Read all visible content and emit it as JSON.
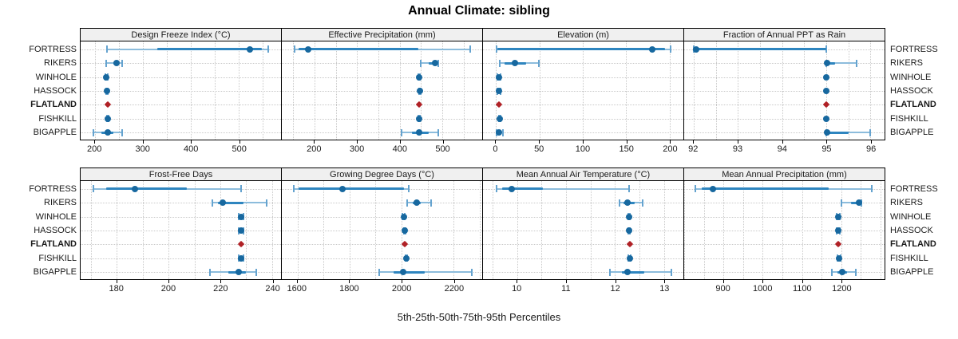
{
  "chart_data": {
    "type": "trellis-percentile-dotplot",
    "title": "Annual Climate: sibling",
    "xlabel": "5th-25th-50th-75th-95th Percentiles",
    "sites": [
      "FORTRESS",
      "RIKERS",
      "WINHOLE",
      "HASSOCK",
      "FLATLAND",
      "FISHKILL",
      "BIGAPPLE"
    ],
    "highlight_site": "FLATLAND",
    "percentile_levels": [
      5,
      25,
      50,
      75,
      95
    ],
    "layout": {
      "rows": 2,
      "cols": 4,
      "grid": "dotted",
      "site_labels": "both-sides"
    },
    "colors": {
      "median_point": "#17689f",
      "iqr_segment": "#2e85bf",
      "range_segment": "#8cbcdc",
      "whisker_cap": "#65a3cf",
      "highlight_point": "#b02126",
      "gridline": "#c9c9c9",
      "strip_bg": "#f0f0f0",
      "panel_border": "#000000"
    },
    "panels": [
      {
        "title": "Design Freeze Index (°C)",
        "xlim": [
          170,
          588
        ],
        "ticks": [
          200,
          300,
          400,
          500
        ],
        "grid_step": 50,
        "percentiles": {
          "FORTRESS": [
            225,
            330,
            523,
            548,
            561
          ],
          "RIKERS": [
            223,
            238,
            245,
            250,
            256
          ],
          "WINHOLE": [
            222,
            223,
            224,
            225,
            226
          ],
          "HASSOCK": [
            223,
            224,
            225,
            226,
            227
          ],
          "FLATLAND": [
            227,
            227,
            227,
            227,
            227
          ],
          "FISHKILL": [
            225,
            226,
            227,
            228,
            229
          ],
          "BIGAPPLE": [
            197,
            213,
            226,
            238,
            256
          ]
        }
      },
      {
        "title": "Effective Precipitation (mm)",
        "xlim": [
          123,
          594
        ],
        "ticks": [
          200,
          300,
          400,
          500
        ],
        "grid_step": 50,
        "percentiles": {
          "FORTRESS": [
            153,
            162,
            185,
            443,
            565
          ],
          "RIKERS": [
            449,
            468,
            483,
            487,
            490
          ],
          "WINHOLE": [
            444,
            445,
            446,
            447,
            448
          ],
          "HASSOCK": [
            445,
            446,
            447,
            448,
            449
          ],
          "FLATLAND": [
            446,
            446,
            446,
            446,
            446
          ],
          "FISHKILL": [
            444,
            445,
            446,
            447,
            448
          ],
          "BIGAPPLE": [
            404,
            428,
            445,
            468,
            490
          ]
        }
      },
      {
        "title": "Elevation (m)",
        "xlim": [
          -15,
          216
        ],
        "ticks": [
          0,
          50,
          100,
          150,
          200
        ],
        "grid_step": 50,
        "percentiles": {
          "FORTRESS": [
            1,
            2,
            180,
            195,
            201
          ],
          "RIKERS": [
            4,
            10,
            22,
            35,
            49
          ],
          "WINHOLE": [
            2,
            3,
            3,
            4,
            5
          ],
          "HASSOCK": [
            2,
            3,
            3,
            4,
            5
          ],
          "FLATLAND": [
            3,
            3,
            3,
            3,
            3
          ],
          "FISHKILL": [
            3,
            3,
            4,
            4,
            5
          ],
          "BIGAPPLE": [
            1,
            2,
            3,
            5,
            8
          ]
        }
      },
      {
        "title": "Fraction of Annual PPT as Rain",
        "xlim": [
          91.78,
          96.32
        ],
        "ticks": [
          92,
          93,
          94,
          95,
          96
        ],
        "grid_step": 0.5,
        "percentiles": {
          "FORTRESS": [
            92,
            92,
            92.05,
            95,
            95
          ],
          "RIKERS": [
            95,
            95,
            95.02,
            95.2,
            95.68
          ],
          "WINHOLE": [
            95,
            95,
            95,
            95,
            95
          ],
          "HASSOCK": [
            95,
            95,
            95,
            95,
            95
          ],
          "FLATLAND": [
            95,
            95,
            95,
            95,
            95
          ],
          "FISHKILL": [
            95,
            95,
            95,
            95,
            95
          ],
          "BIGAPPLE": [
            95,
            95,
            95.02,
            95.5,
            96
          ]
        }
      },
      {
        "title": "Frost-Free Days",
        "xlim": [
          166,
          243.5
        ],
        "ticks": [
          180,
          200,
          220,
          240
        ],
        "grid_step": 10,
        "percentiles": {
          "FORTRESS": [
            171,
            176,
            187,
            207,
            228
          ],
          "RIKERS": [
            217,
            219,
            221,
            229,
            238
          ],
          "WINHOLE": [
            227,
            227.5,
            228,
            228.5,
            229
          ],
          "HASSOCK": [
            227,
            227.5,
            228,
            228.5,
            229
          ],
          "FLATLAND": [
            228,
            228,
            228,
            228,
            228
          ],
          "FISHKILL": [
            227,
            227.5,
            228,
            228.5,
            229
          ],
          "BIGAPPLE": [
            216,
            223,
            227,
            230,
            234
          ]
        }
      },
      {
        "title": "Growing Degree Days (°C)",
        "xlim": [
          1540,
          2310
        ],
        "ticks": [
          1600,
          1800,
          2000,
          2200
        ],
        "grid_step": 100,
        "percentiles": {
          "FORTRESS": [
            1585,
            1605,
            1772,
            2010,
            2028
          ],
          "RIKERS": [
            2022,
            2042,
            2058,
            2075,
            2114
          ],
          "WINHOLE": [
            2004,
            2006,
            2008,
            2010,
            2012
          ],
          "HASSOCK": [
            2008,
            2010,
            2012,
            2014,
            2016
          ],
          "FLATLAND": [
            2013,
            2013,
            2013,
            2013,
            2013
          ],
          "FISHKILL": [
            2014,
            2016,
            2018,
            2020,
            2022
          ],
          "BIGAPPLE": [
            1915,
            1970,
            2007,
            2090,
            2269
          ]
        }
      },
      {
        "title": "Mean Annual Air Temperature (°C)",
        "xlim": [
          9.3,
          13.4
        ],
        "ticks": [
          10,
          11,
          12,
          13
        ],
        "grid_step": 0.5,
        "percentiles": {
          "FORTRESS": [
            9.58,
            9.7,
            9.89,
            10.53,
            12.29
          ],
          "RIKERS": [
            12.09,
            12.18,
            12.25,
            12.4,
            12.56
          ],
          "WINHOLE": [
            12.27,
            12.28,
            12.29,
            12.3,
            12.31
          ],
          "HASSOCK": [
            12.27,
            12.28,
            12.29,
            12.3,
            12.31
          ],
          "FLATLAND": [
            12.3,
            12.3,
            12.3,
            12.3,
            12.3
          ],
          "FISHKILL": [
            12.28,
            12.29,
            12.3,
            12.31,
            12.32
          ],
          "BIGAPPLE": [
            11.9,
            12.15,
            12.26,
            12.6,
            13.15
          ]
        }
      },
      {
        "title": "Mean Annual Precipitation (mm)",
        "xlim": [
          800,
          1310
        ],
        "ticks": [
          900,
          1000,
          1100,
          1200
        ],
        "grid_step": 50,
        "percentiles": {
          "FORTRESS": [
            828,
            845,
            873,
            1167,
            1278
          ],
          "RIKERS": [
            1200,
            1225,
            1245,
            1248,
            1252
          ],
          "WINHOLE": [
            1188,
            1190,
            1192,
            1194,
            1196
          ],
          "HASSOCK": [
            1188,
            1190,
            1192,
            1194,
            1196
          ],
          "FLATLAND": [
            1193,
            1193,
            1193,
            1193,
            1193
          ],
          "FISHKILL": [
            1191,
            1193,
            1195,
            1197,
            1199
          ],
          "BIGAPPLE": [
            1176,
            1190,
            1202,
            1215,
            1237
          ]
        }
      }
    ]
  }
}
